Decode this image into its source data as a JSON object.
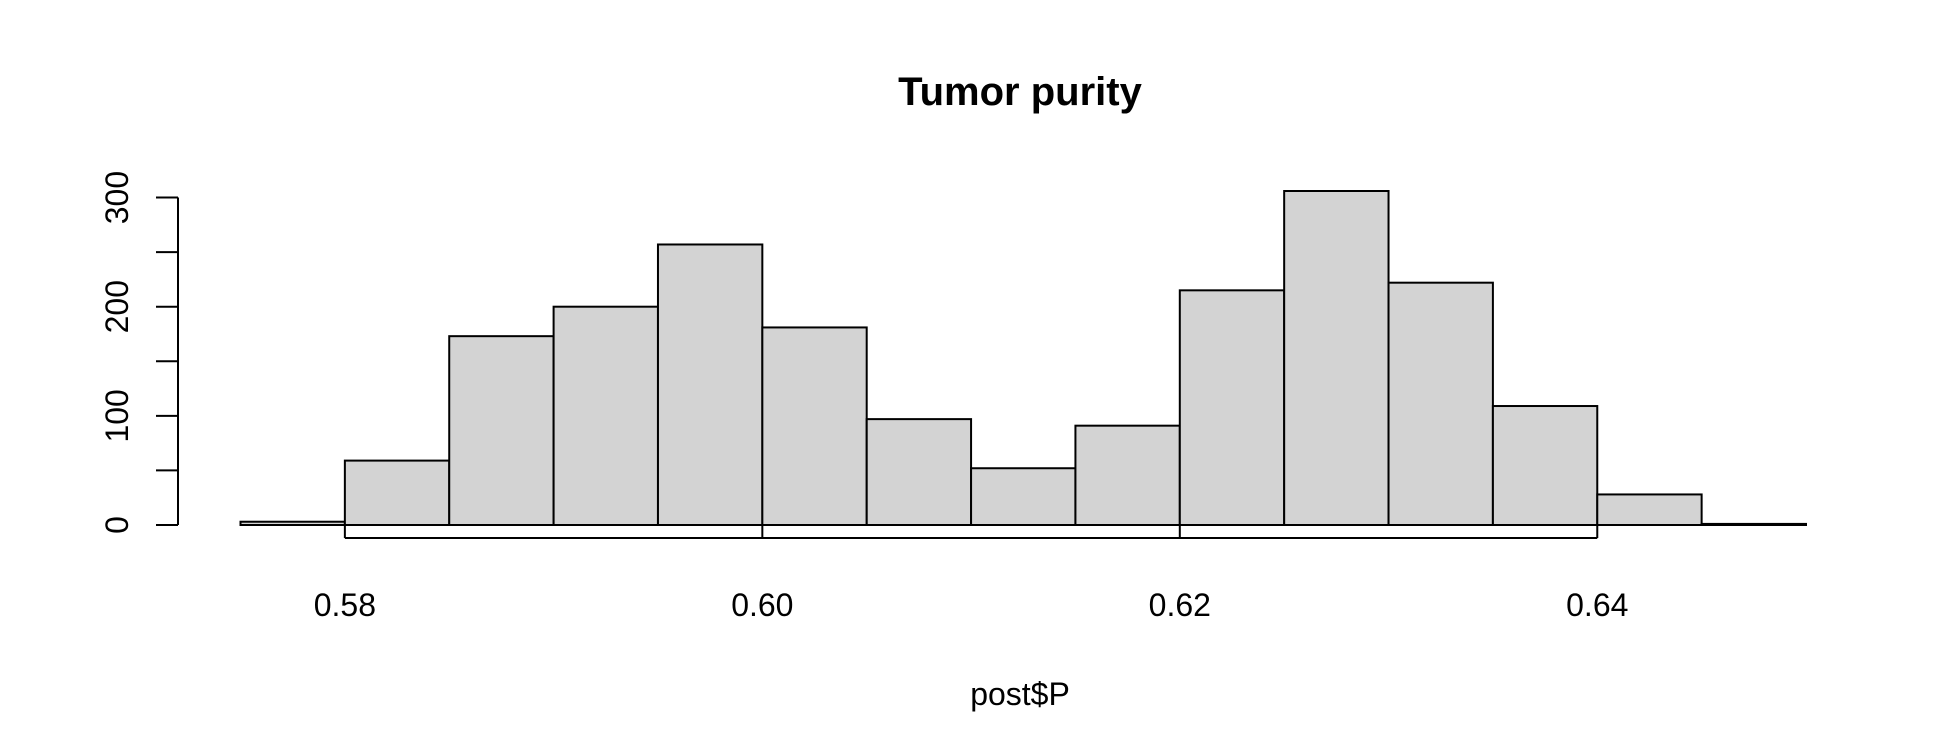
{
  "chart_data": {
    "type": "bar",
    "title": "Tumor purity",
    "xlabel": "post$P",
    "ylabel": "",
    "bin_edges": [
      0.575,
      0.58,
      0.585,
      0.59,
      0.595,
      0.6,
      0.605,
      0.61,
      0.615,
      0.62,
      0.625,
      0.63,
      0.635,
      0.64,
      0.645,
      0.65
    ],
    "values": [
      3,
      59,
      173,
      200,
      257,
      181,
      97,
      52,
      91,
      215,
      306,
      222,
      109,
      28,
      1
    ],
    "xlim": [
      0.575,
      0.65
    ],
    "ylim": [
      0,
      306
    ],
    "x_ticks": [
      0.58,
      0.6,
      0.62,
      0.64
    ],
    "x_tick_labels": [
      "0.58",
      "0.60",
      "0.62",
      "0.64"
    ],
    "y_ticks": [
      0,
      50,
      100,
      150,
      200,
      250,
      300
    ],
    "y_tick_labels": [
      "0",
      "100",
      "200",
      "300"
    ],
    "y_labeled_ticks": [
      0,
      100,
      200,
      300
    ],
    "colors": {
      "bar_fill": "#d3d3d3",
      "bar_stroke": "#000000"
    },
    "grid": false,
    "legend": "none"
  }
}
